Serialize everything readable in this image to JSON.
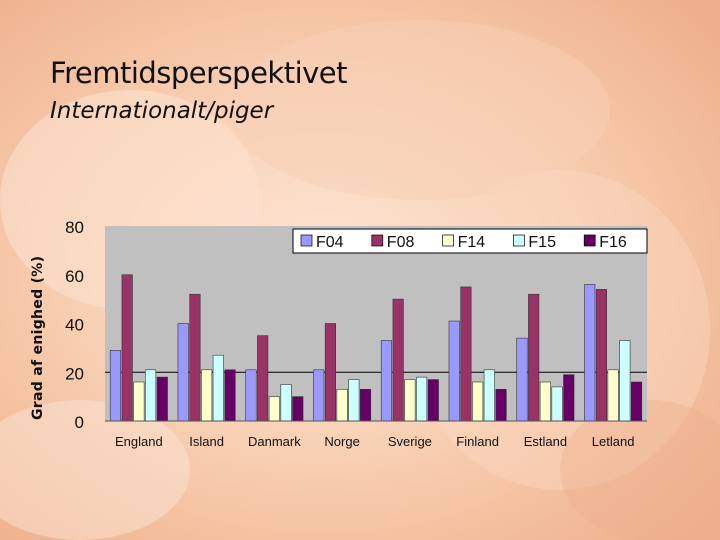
{
  "slide": {
    "title": "Fremtidsperspektivet",
    "subtitle": "Internationalt/piger"
  },
  "chart_data": {
    "type": "bar",
    "title": "",
    "xlabel": "",
    "ylabel": "Grad af enighed (%)",
    "ylim": [
      0,
      80
    ],
    "yticks": [
      0,
      20,
      40,
      60,
      80
    ],
    "grid": "horizontal line at 20",
    "legend_position": "top-right",
    "categories": [
      "England",
      "Island",
      "Danmark",
      "Norge",
      "Sverige",
      "Finland",
      "Estland",
      "Letland"
    ],
    "series": [
      {
        "name": "F04",
        "color": "#9999ff",
        "values": [
          29,
          40,
          21,
          21,
          33,
          41,
          34,
          56
        ]
      },
      {
        "name": "F08",
        "color": "#993366",
        "values": [
          60,
          52,
          35,
          40,
          50,
          55,
          52,
          54
        ]
      },
      {
        "name": "F14",
        "color": "#ffffcc",
        "values": [
          16,
          21,
          10,
          13,
          17,
          16,
          16,
          21
        ]
      },
      {
        "name": "F15",
        "color": "#ccffff",
        "values": [
          21,
          27,
          15,
          17,
          18,
          21,
          14,
          33
        ]
      },
      {
        "name": "F16",
        "color": "#660066",
        "values": [
          18,
          21,
          10,
          13,
          17,
          13,
          19,
          16
        ]
      }
    ]
  }
}
